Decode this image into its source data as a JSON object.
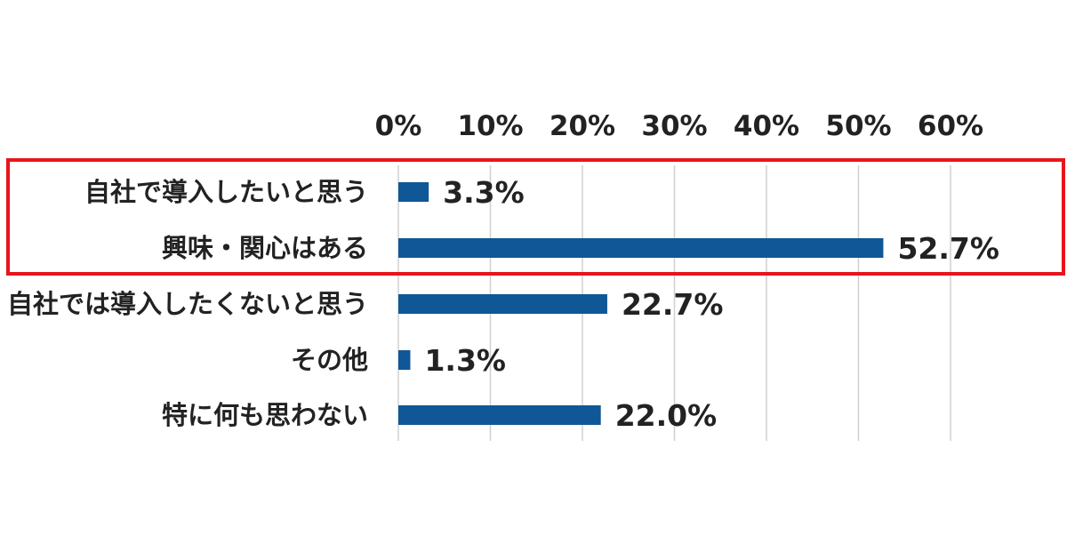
{
  "chart_data": {
    "type": "bar",
    "orientation": "horizontal",
    "categories": [
      "自社で導入したいと思う",
      "興味・関心はある",
      "自社では導入したくないと思う",
      "その他",
      "特に何も思わない"
    ],
    "values": [
      3.3,
      52.7,
      22.7,
      1.3,
      22.0
    ],
    "value_labels": [
      "3.3%",
      "52.7%",
      "22.7%",
      "1.3%",
      "22.0%"
    ],
    "x_ticks": [
      0,
      10,
      20,
      30,
      40,
      50,
      60
    ],
    "x_tick_labels": [
      "0%",
      "10%",
      "20%",
      "30%",
      "40%",
      "50%",
      "60%"
    ],
    "xlim": [
      0,
      60
    ],
    "grid": true,
    "tick_position": "top",
    "highlighted_categories": [
      0,
      1
    ],
    "colors": {
      "bar": "#0F5796",
      "highlight_box": "#E8141C",
      "grid": "#D0D0D0",
      "text": "#222222"
    }
  }
}
